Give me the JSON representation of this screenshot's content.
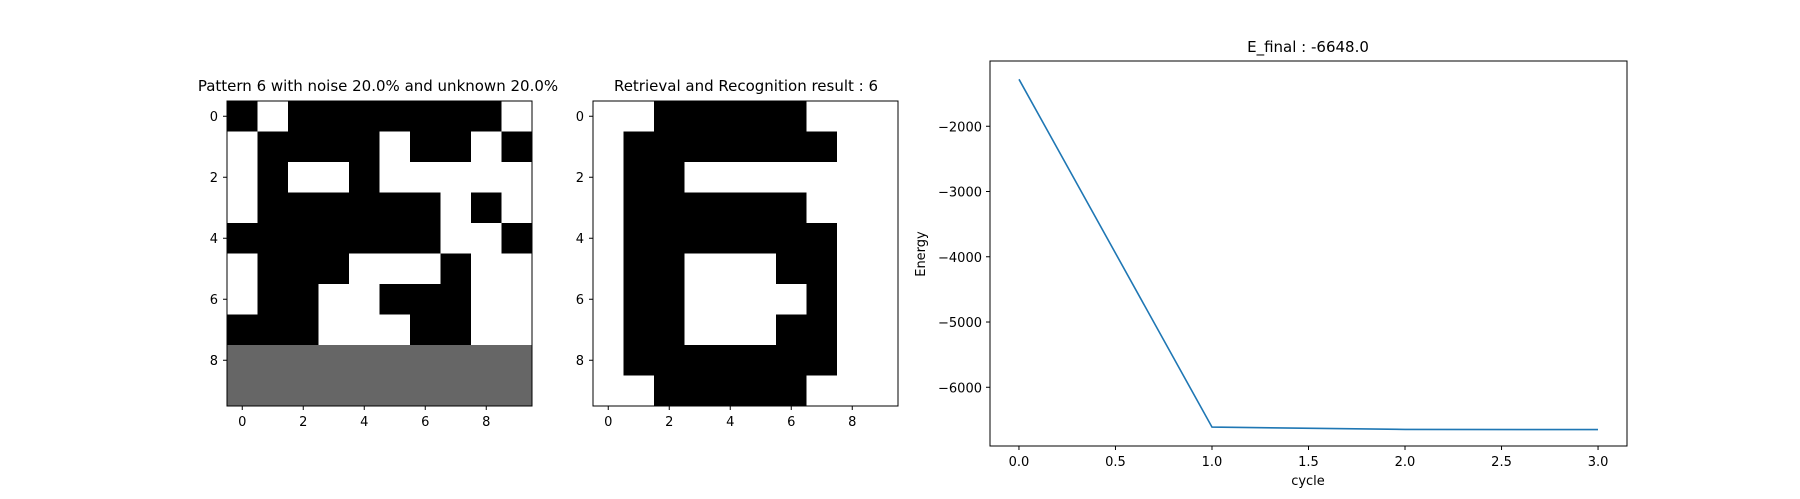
{
  "chart_data": [
    {
      "type": "heatmap",
      "title": "Pattern 6 with noise 20.0% and unknown 20.0%",
      "xticks": [
        "0",
        "2",
        "4",
        "6",
        "8"
      ],
      "yticks": [
        "0",
        "2",
        "4",
        "6",
        "8"
      ],
      "value_meaning": {
        "1": "black",
        "0": "white",
        "-1": "gray (unknown)"
      },
      "colors": {
        "1": "#000000",
        "0": "#ffffff",
        "-1": "#666666"
      },
      "grid": [
        [
          1,
          0,
          1,
          1,
          1,
          1,
          1,
          1,
          1,
          0
        ],
        [
          0,
          1,
          1,
          1,
          1,
          0,
          1,
          1,
          0,
          1
        ],
        [
          0,
          1,
          0,
          0,
          1,
          0,
          0,
          0,
          0,
          0
        ],
        [
          0,
          1,
          1,
          1,
          1,
          1,
          1,
          0,
          1,
          0
        ],
        [
          1,
          1,
          1,
          1,
          1,
          1,
          1,
          0,
          0,
          1
        ],
        [
          0,
          1,
          1,
          1,
          0,
          0,
          0,
          1,
          0,
          0
        ],
        [
          0,
          1,
          1,
          0,
          0,
          1,
          1,
          1,
          0,
          0
        ],
        [
          1,
          1,
          1,
          0,
          0,
          0,
          1,
          1,
          0,
          0
        ],
        [
          -1,
          -1,
          -1,
          -1,
          -1,
          -1,
          -1,
          -1,
          -1,
          -1
        ],
        [
          -1,
          -1,
          -1,
          -1,
          -1,
          -1,
          -1,
          -1,
          -1,
          -1
        ]
      ]
    },
    {
      "type": "heatmap",
      "title": "Retrieval and Recognition result : 6",
      "xticks": [
        "0",
        "2",
        "4",
        "6",
        "8"
      ],
      "yticks": [
        "0",
        "2",
        "4",
        "6",
        "8"
      ],
      "colors": {
        "1": "#000000",
        "0": "#ffffff"
      },
      "grid": [
        [
          0,
          0,
          1,
          1,
          1,
          1,
          1,
          0,
          0,
          0
        ],
        [
          0,
          1,
          1,
          1,
          1,
          1,
          1,
          1,
          0,
          0
        ],
        [
          0,
          1,
          1,
          0,
          0,
          0,
          0,
          0,
          0,
          0
        ],
        [
          0,
          1,
          1,
          1,
          1,
          1,
          1,
          0,
          0,
          0
        ],
        [
          0,
          1,
          1,
          1,
          1,
          1,
          1,
          1,
          0,
          0
        ],
        [
          0,
          1,
          1,
          0,
          0,
          0,
          1,
          1,
          0,
          0
        ],
        [
          0,
          1,
          1,
          0,
          0,
          0,
          0,
          1,
          0,
          0
        ],
        [
          0,
          1,
          1,
          0,
          0,
          0,
          1,
          1,
          0,
          0
        ],
        [
          0,
          1,
          1,
          1,
          1,
          1,
          1,
          1,
          0,
          0
        ],
        [
          0,
          0,
          1,
          1,
          1,
          1,
          1,
          0,
          0,
          0
        ]
      ]
    },
    {
      "type": "line",
      "title": "E_final : -6648.0",
      "xlabel": "cycle",
      "ylabel": "Energy",
      "x": [
        0.0,
        1.0,
        2.0,
        3.0
      ],
      "series": [
        {
          "values": [
            -1280,
            -6610,
            -6645,
            -6648.0
          ],
          "color": "#1f77b4"
        }
      ],
      "xlim": [
        -0.15,
        3.15
      ],
      "ylim": [
        -6900,
        -1000
      ],
      "xticks": [
        "0.0",
        "0.5",
        "1.0",
        "1.5",
        "2.0",
        "2.5",
        "3.0"
      ],
      "yticks": [
        "−2000",
        "−3000",
        "−4000",
        "−5000",
        "−6000"
      ],
      "grid": false
    }
  ]
}
